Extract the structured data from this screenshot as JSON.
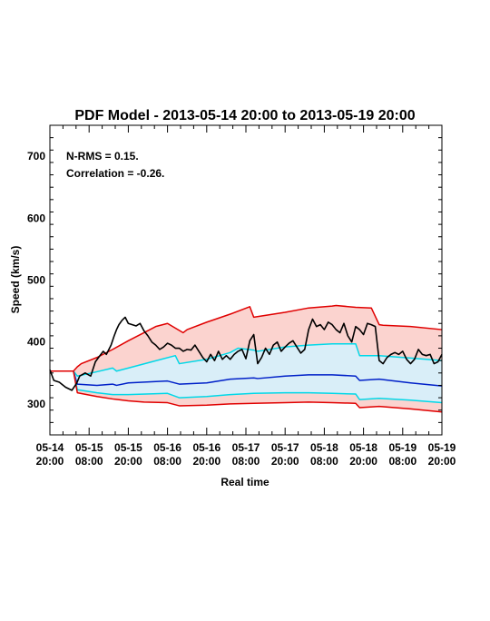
{
  "chart_data": {
    "type": "line",
    "title": "PDF Model - 2013-05-14 20:00 to 2013-05-19 20:00",
    "xlabel": "Real time",
    "ylabel": "Speed (km/s)",
    "xlim": [
      "2013-05-14 20:00",
      "2013-05-19 20:00"
    ],
    "ylim": [
      250,
      750
    ],
    "annotations": [
      "N-RMS = 0.15.",
      "Correlation = -0.26."
    ],
    "x_ticks": [
      {
        "line1": "05-14",
        "line2": "20:00"
      },
      {
        "line1": "05-15",
        "line2": "08:00"
      },
      {
        "line1": "05-15",
        "line2": "20:00"
      },
      {
        "line1": "05-16",
        "line2": "08:00"
      },
      {
        "line1": "05-16",
        "line2": "20:00"
      },
      {
        "line1": "05-17",
        "line2": "08:00"
      },
      {
        "line1": "05-17",
        "line2": "20:00"
      },
      {
        "line1": "05-18",
        "line2": "08:00"
      },
      {
        "line1": "05-18",
        "line2": "20:00"
      },
      {
        "line1": "05-19",
        "line2": "08:00"
      },
      {
        "line1": "05-19",
        "line2": "20:00"
      }
    ],
    "y_ticks": [
      300,
      400,
      500,
      600,
      700
    ],
    "band_fill_colors": {
      "outer": "#fbd3cf",
      "inner": "#d9eef8"
    },
    "series": [
      {
        "color": "#e00000",
        "x": [
          0,
          0.1,
          0.3,
          0.35,
          0.4,
          0.6,
          0.8,
          1.0,
          1.2,
          1.35,
          1.5,
          1.7,
          1.75,
          2.0,
          2.3,
          2.55,
          2.6,
          3.0,
          3.3,
          3.6,
          3.65,
          3.9,
          4.1,
          4.2,
          4.25,
          4.6,
          5.0
        ],
        "y": [
          353,
          353,
          353,
          360,
          365,
          375,
          388,
          402,
          415,
          425,
          430,
          415,
          420,
          432,
          445,
          457,
          440,
          448,
          455,
          458,
          459,
          456,
          455,
          428,
          427,
          425,
          420
        ]
      },
      {
        "color": "#00d8e8",
        "x": [
          0,
          0.3,
          0.35,
          0.6,
          0.8,
          0.85,
          1.0,
          1.3,
          1.6,
          1.65,
          2.0,
          2.3,
          2.4,
          2.6,
          2.65,
          3.0,
          3.3,
          3.6,
          3.9,
          3.95,
          4.2,
          4.6,
          5.0
        ],
        "y": [
          353,
          353,
          345,
          352,
          358,
          353,
          358,
          368,
          378,
          365,
          372,
          383,
          390,
          387,
          385,
          392,
          395,
          397,
          397,
          378,
          378,
          374,
          370
        ]
      },
      {
        "color": "#0020c8",
        "x": [
          0,
          0.3,
          0.35,
          0.6,
          0.8,
          0.85,
          1.0,
          1.5,
          1.65,
          2.0,
          2.3,
          2.6,
          2.65,
          3.0,
          3.3,
          3.6,
          3.9,
          3.95,
          4.2,
          4.6,
          5.0
        ],
        "y": [
          353,
          353,
          332,
          330,
          332,
          330,
          334,
          337,
          332,
          334,
          340,
          342,
          341,
          345,
          347,
          347,
          345,
          338,
          340,
          334,
          329
        ]
      },
      {
        "color": "#00d8e8",
        "x": [
          0,
          0.3,
          0.35,
          0.6,
          0.8,
          1.0,
          1.5,
          1.65,
          2.0,
          2.3,
          2.6,
          3.0,
          3.3,
          3.6,
          3.9,
          3.95,
          4.2,
          4.6,
          5.0
        ],
        "y": [
          353,
          353,
          323,
          318,
          315,
          315,
          317,
          310,
          312,
          315,
          317,
          318,
          318,
          317,
          316,
          307,
          309,
          306,
          302
        ]
      },
      {
        "color": "#e00000",
        "x": [
          0,
          0.3,
          0.35,
          0.6,
          0.8,
          1.0,
          1.2,
          1.5,
          1.65,
          2.0,
          2.3,
          2.6,
          3.0,
          3.3,
          3.6,
          3.9,
          3.95,
          4.2,
          4.6,
          5.0
        ],
        "y": [
          353,
          353,
          318,
          312,
          308,
          305,
          303,
          302,
          297,
          298,
          300,
          301,
          302,
          303,
          302,
          301,
          294,
          296,
          292,
          287
        ]
      },
      {
        "color": "#000000",
        "x": [
          0,
          0.05,
          0.12,
          0.2,
          0.28,
          0.34,
          0.38,
          0.45,
          0.52,
          0.58,
          0.62,
          0.68,
          0.72,
          0.78,
          0.82,
          0.85,
          0.88,
          0.92,
          0.96,
          1.0,
          1.05,
          1.1,
          1.15,
          1.2,
          1.25,
          1.3,
          1.35,
          1.4,
          1.45,
          1.5,
          1.55,
          1.6,
          1.65,
          1.7,
          1.75,
          1.8,
          1.85,
          1.9,
          1.95,
          2.0,
          2.05,
          2.1,
          2.15,
          2.2,
          2.25,
          2.3,
          2.35,
          2.4,
          2.45,
          2.5,
          2.55,
          2.6,
          2.65,
          2.7,
          2.75,
          2.8,
          2.85,
          2.9,
          2.95,
          3.0,
          3.05,
          3.1,
          3.15,
          3.2,
          3.25,
          3.3,
          3.35,
          3.4,
          3.45,
          3.5,
          3.55,
          3.6,
          3.65,
          3.7,
          3.75,
          3.8,
          3.85,
          3.9,
          3.95,
          4.0,
          4.05,
          4.1,
          4.15,
          4.2,
          4.25,
          4.3,
          4.35,
          4.4,
          4.45,
          4.5,
          4.55,
          4.6,
          4.65,
          4.7,
          4.75,
          4.8,
          4.85,
          4.9,
          4.95,
          5.0
        ],
        "y": [
          355,
          338,
          335,
          327,
          322,
          333,
          345,
          350,
          345,
          368,
          375,
          385,
          380,
          395,
          410,
          420,
          428,
          435,
          440,
          430,
          428,
          426,
          430,
          418,
          410,
          400,
          395,
          388,
          392,
          398,
          395,
          390,
          390,
          385,
          388,
          387,
          395,
          385,
          375,
          368,
          380,
          370,
          385,
          372,
          378,
          372,
          380,
          385,
          388,
          373,
          402,
          412,
          365,
          375,
          390,
          380,
          395,
          400,
          385,
          392,
          398,
          402,
          392,
          382,
          388,
          420,
          437,
          425,
          428,
          420,
          432,
          428,
          420,
          415,
          430,
          410,
          400,
          425,
          420,
          412,
          430,
          428,
          425,
          370,
          365,
          375,
          380,
          383,
          380,
          385,
          372,
          365,
          372,
          388,
          380,
          378,
          380,
          365,
          368,
          380
        ]
      }
    ]
  }
}
